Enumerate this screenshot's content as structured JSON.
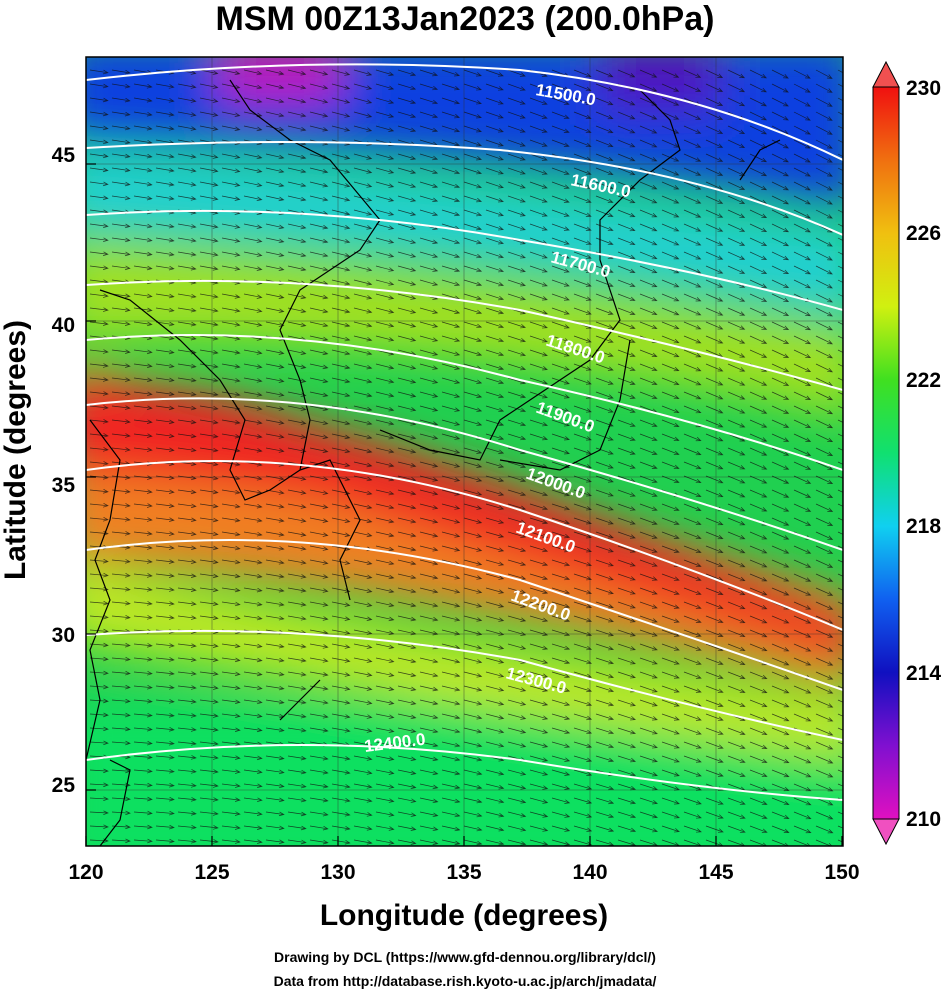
{
  "title": "MSM 00Z13Jan2023 (200.0hPa)",
  "x_axis": {
    "label": "Longitude (degrees)",
    "ticks": [
      "120",
      "125",
      "130",
      "135",
      "140",
      "145",
      "150"
    ],
    "range": [
      120,
      150
    ]
  },
  "y_axis": {
    "label": "Latitude  (degrees)",
    "ticks": [
      "25",
      "30",
      "35",
      "40",
      "45"
    ],
    "range": [
      22.4,
      47.6
    ]
  },
  "colorbar": {
    "ticks": [
      "230",
      "226",
      "222",
      "218",
      "214",
      "210"
    ],
    "range": [
      210,
      230
    ],
    "colors": [
      "#e010c0",
      "#8010d0",
      "#1010c0",
      "#1060f0",
      "#10d0f0",
      "#10e070",
      "#40e020",
      "#d0f010",
      "#f0c010",
      "#f07010",
      "#f01010"
    ]
  },
  "contours": [
    {
      "label": "11500.0",
      "value": 11500
    },
    {
      "label": "11600.0",
      "value": 11600
    },
    {
      "label": "11700.0",
      "value": 11700
    },
    {
      "label": "11800.0",
      "value": 11800
    },
    {
      "label": "11900.0",
      "value": 11900
    },
    {
      "label": "12000.0",
      "value": 12000
    },
    {
      "label": "12100.0",
      "value": 12100
    },
    {
      "label": "12200.0",
      "value": 12200
    },
    {
      "label": "12300.0",
      "value": 12300
    },
    {
      "label": "12400.0",
      "value": 12400
    }
  ],
  "credits": {
    "line1": "Drawing by DCL (https://www.gfd-dennou.org/library/dcl/)",
    "line2": "Data from http://database.rish.kyoto-u.ac.jp/arch/jmadata/"
  }
}
